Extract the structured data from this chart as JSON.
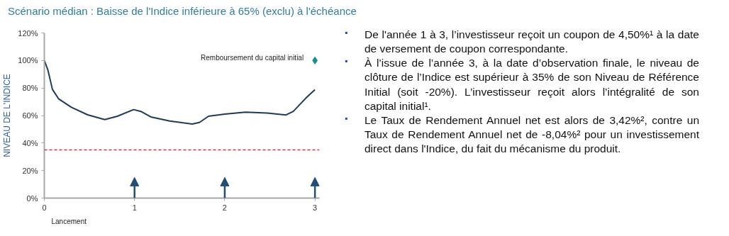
{
  "chart_data": {
    "type": "line",
    "title": "Scénario médian : Baisse de l'Indice inférieure à 65% (exclu) à l'échéance",
    "ylabel": "NIVEAU DE L'INDICE",
    "xlim": [
      0,
      3.05
    ],
    "xticks": [
      0,
      1,
      2,
      3
    ],
    "ylim": [
      0,
      120
    ],
    "yticks": [
      {
        "value": 0,
        "label": "0%"
      },
      {
        "value": 20,
        "label": "20%"
      },
      {
        "value": 40,
        "label": "40%"
      },
      {
        "value": 60,
        "label": "60%"
      },
      {
        "value": 80,
        "label": "80%"
      },
      {
        "value": 100,
        "label": "100%"
      },
      {
        "value": 120,
        "label": "120%"
      }
    ],
    "grid": false,
    "series": [
      {
        "color": "#1f3b5a",
        "line_style": "solid",
        "marker": "none",
        "x": [
          0,
          0.04,
          0.09,
          0.16,
          0.3,
          0.48,
          0.67,
          0.81,
          0.99,
          1.07,
          1.18,
          1.39,
          1.64,
          1.72,
          1.82,
          2.0,
          2.23,
          2.47,
          2.68,
          2.76,
          2.9,
          3.0
        ],
        "values": [
          100,
          93,
          79,
          72,
          66,
          60.5,
          57,
          59.5,
          64.3,
          63,
          59,
          56,
          53.8,
          55,
          59.5,
          61,
          62.5,
          61.8,
          60.4,
          63,
          72.7,
          78.8
        ]
      },
      {
        "type": "scatter",
        "color": "#16908f",
        "marker": "diamond",
        "x": [
          3
        ],
        "values": [
          100
        ]
      }
    ],
    "ref_lines": [
      {
        "axis": "y",
        "value": 35,
        "color": "#c8383a",
        "line_style": "dashed"
      }
    ],
    "annotations": [
      {
        "text": "Remboursement du capital initial",
        "x": 3,
        "y": 100
      },
      "Lancement",
      "▪ De l'année 1 à 3, l’investisseur reçoit un coupon de 4,50%¹ à la date de versement de coupon correspondante.",
      "▪ À l’issue de l’année 3, à la date d’observation finale, le niveau de clôture de l’Indice est supérieur à 35% de son Niveau de Référence Initial (soit -20%). L’investisseur reçoit alors l’intégralité de son capital initial¹.",
      "▪ Le Taux de Rendement Annuel net est alors de 3,42%², contre un Taux de Rendement Annuel net de -8,04%² pour un investissement direct dans l'Indice, du fait du mécanisme du produit."
    ]
  }
}
